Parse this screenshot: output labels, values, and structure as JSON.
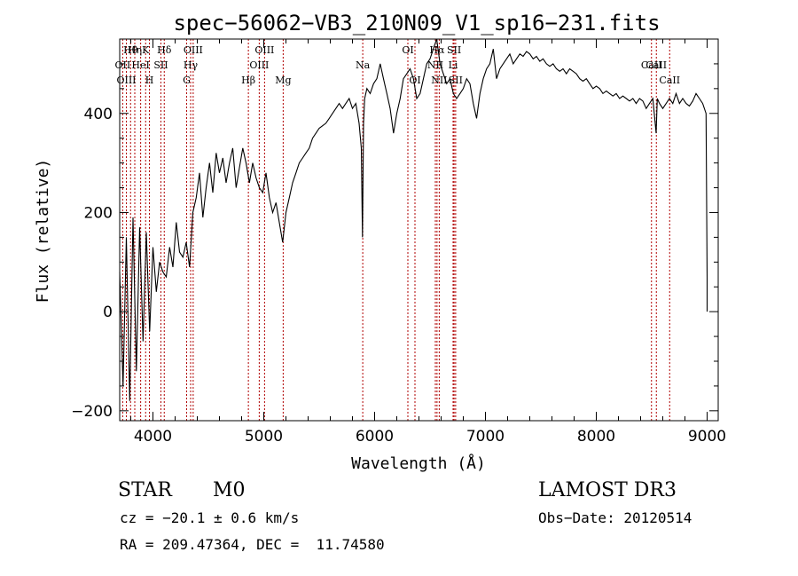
{
  "chart_data": {
    "type": "line",
    "title": "spec−56062−VB3_210N09_V1_sp16−231.fits",
    "xlabel": "Wavelength (Å)",
    "ylabel": "Flux (relative)",
    "xlim": [
      3700,
      9100
    ],
    "ylim": [
      -220,
      550
    ],
    "xticks": [
      4000,
      5000,
      6000,
      7000,
      8000,
      9000
    ],
    "yticks": [
      -200,
      0,
      200,
      400
    ],
    "grid": false,
    "series": [
      {
        "color": "#000000",
        "x": [
          3700,
          3730,
          3760,
          3790,
          3820,
          3850,
          3880,
          3910,
          3940,
          3970,
          4000,
          4030,
          4060,
          4090,
          4120,
          4150,
          4180,
          4210,
          4240,
          4270,
          4300,
          4330,
          4360,
          4390,
          4420,
          4450,
          4480,
          4510,
          4540,
          4570,
          4600,
          4630,
          4660,
          4690,
          4720,
          4750,
          4780,
          4810,
          4840,
          4870,
          4900,
          4930,
          4960,
          4990,
          5020,
          5050,
          5080,
          5110,
          5140,
          5170,
          5200,
          5230,
          5260,
          5290,
          5320,
          5350,
          5380,
          5410,
          5440,
          5470,
          5500,
          5530,
          5560,
          5590,
          5620,
          5650,
          5680,
          5710,
          5740,
          5770,
          5800,
          5830,
          5860,
          5880,
          5890,
          5900,
          5910,
          5930,
          5960,
          5990,
          6020,
          6050,
          6080,
          6110,
          6140,
          6170,
          6200,
          6230,
          6260,
          6290,
          6320,
          6350,
          6380,
          6410,
          6440,
          6470,
          6500,
          6530,
          6560,
          6590,
          6620,
          6650,
          6680,
          6710,
          6740,
          6770,
          6800,
          6830,
          6860,
          6890,
          6920,
          6950,
          6980,
          7010,
          7040,
          7070,
          7100,
          7130,
          7160,
          7190,
          7220,
          7250,
          7280,
          7310,
          7340,
          7370,
          7400,
          7430,
          7460,
          7490,
          7520,
          7550,
          7580,
          7610,
          7640,
          7670,
          7700,
          7730,
          7760,
          7790,
          7820,
          7850,
          7880,
          7910,
          7940,
          7970,
          8000,
          8030,
          8060,
          8090,
          8120,
          8150,
          8180,
          8210,
          8240,
          8270,
          8300,
          8330,
          8360,
          8390,
          8420,
          8450,
          8480,
          8510,
          8540,
          8550,
          8570,
          8600,
          8630,
          8660,
          8690,
          8720,
          8750,
          8780,
          8810,
          8840,
          8870,
          8900,
          8930,
          8960,
          8990,
          9000,
          9000
        ],
        "y": [
          80,
          -150,
          150,
          -180,
          190,
          -120,
          170,
          -60,
          160,
          -40,
          130,
          40,
          100,
          80,
          70,
          130,
          90,
          180,
          120,
          110,
          140,
          90,
          200,
          230,
          280,
          190,
          250,
          300,
          240,
          320,
          280,
          310,
          260,
          300,
          330,
          250,
          290,
          330,
          300,
          260,
          300,
          270,
          250,
          240,
          280,
          230,
          200,
          220,
          180,
          140,
          200,
          230,
          260,
          280,
          300,
          310,
          320,
          330,
          350,
          360,
          370,
          375,
          380,
          390,
          400,
          410,
          420,
          410,
          420,
          430,
          410,
          420,
          380,
          330,
          150,
          380,
          430,
          450,
          440,
          460,
          470,
          500,
          470,
          440,
          410,
          360,
          400,
          430,
          470,
          480,
          490,
          470,
          430,
          440,
          470,
          500,
          510,
          530,
          550,
          500,
          480,
          460,
          470,
          440,
          430,
          440,
          450,
          470,
          460,
          420,
          390,
          440,
          470,
          490,
          500,
          530,
          470,
          490,
          500,
          510,
          520,
          500,
          510,
          520,
          515,
          525,
          520,
          510,
          515,
          505,
          510,
          500,
          495,
          500,
          490,
          485,
          490,
          480,
          490,
          485,
          480,
          470,
          465,
          470,
          460,
          450,
          455,
          450,
          440,
          445,
          440,
          435,
          440,
          430,
          435,
          430,
          425,
          430,
          420,
          430,
          425,
          410,
          420,
          430,
          360,
          430,
          420,
          410,
          420,
          430,
          420,
          440,
          420,
          430,
          420,
          415,
          425,
          440,
          430,
          420,
          400,
          70,
          0
        ]
      }
    ],
    "spectral_lines": [
      {
        "name": "Hθ",
        "x": 3798,
        "row": 1
      },
      {
        "name": "Hη",
        "x": 3836,
        "row": 1
      },
      {
        "name": "K",
        "x": 3934,
        "row": 1
      },
      {
        "name": "Hδ",
        "x": 4102,
        "row": 1
      },
      {
        "name": "OIII",
        "x": 4363,
        "row": 1
      },
      {
        "name": "OIII",
        "x": 5007,
        "row": 1
      },
      {
        "name": "OI",
        "x": 6300,
        "row": 1
      },
      {
        "name": "Hα",
        "x": 6563,
        "row": 1
      },
      {
        "name": "SII",
        "x": 6717,
        "row": 1
      },
      {
        "name": "CaII",
        "x": 8542,
        "row": 2
      },
      {
        "name": "OII",
        "x": 3727,
        "row": 2
      },
      {
        "name": "HeI",
        "x": 3889,
        "row": 2
      },
      {
        "name": "SII",
        "x": 4072,
        "row": 2
      },
      {
        "name": "Hγ",
        "x": 4340,
        "row": 2
      },
      {
        "name": "OIII",
        "x": 4959,
        "row": 2
      },
      {
        "name": "Na",
        "x": 5893,
        "row": 2
      },
      {
        "name": "NII",
        "x": 6548,
        "row": 2
      },
      {
        "name": "Li",
        "x": 6708,
        "row": 2
      },
      {
        "name": "CaII",
        "x": 8498,
        "row": 2
      },
      {
        "name": "OIII",
        "x": 3760,
        "row": 3
      },
      {
        "name": "H",
        "x": 3968,
        "row": 3
      },
      {
        "name": "G",
        "x": 4304,
        "row": 3
      },
      {
        "name": "Hβ",
        "x": 4861,
        "row": 3
      },
      {
        "name": "Mg",
        "x": 5175,
        "row": 3
      },
      {
        "name": "OI",
        "x": 6364,
        "row": 3
      },
      {
        "name": "NII",
        "x": 6583,
        "row": 3
      },
      {
        "name": "SII",
        "x": 6731,
        "row": 3
      },
      {
        "name": "CaII",
        "x": 8662,
        "row": 3
      }
    ],
    "line_color": "#b00000"
  },
  "info": {
    "class": "STAR",
    "subclass": "M0",
    "survey": "LAMOST DR3",
    "cz": "cz = −20.1 ± 0.6 km/s",
    "obs_date": "Obs−Date: 20120514",
    "coords": "RA = 209.47364, DEC =  11.74580"
  }
}
